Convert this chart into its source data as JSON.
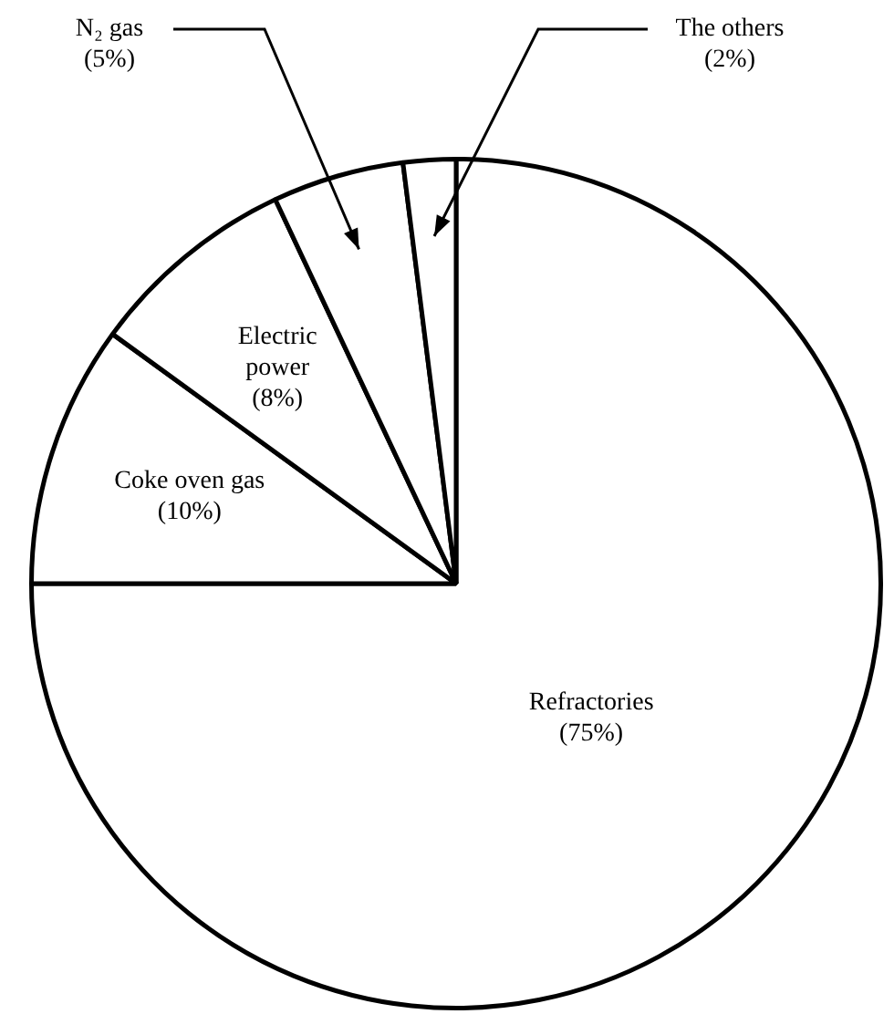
{
  "chart_data": {
    "type": "pie",
    "categories": [
      "Refractories",
      "Coke oven gas",
      "Electric power",
      "N₂ gas",
      "The others"
    ],
    "values": [
      75,
      10,
      8,
      5,
      2
    ],
    "value_labels": [
      "(75%)",
      "(10%)",
      "(8%)",
      "(5%)",
      "(2%)"
    ],
    "colors": [
      "#ffffff",
      "#ffffff",
      "#ffffff",
      "#ffffff",
      "#ffffff"
    ],
    "legend": false
  }
}
